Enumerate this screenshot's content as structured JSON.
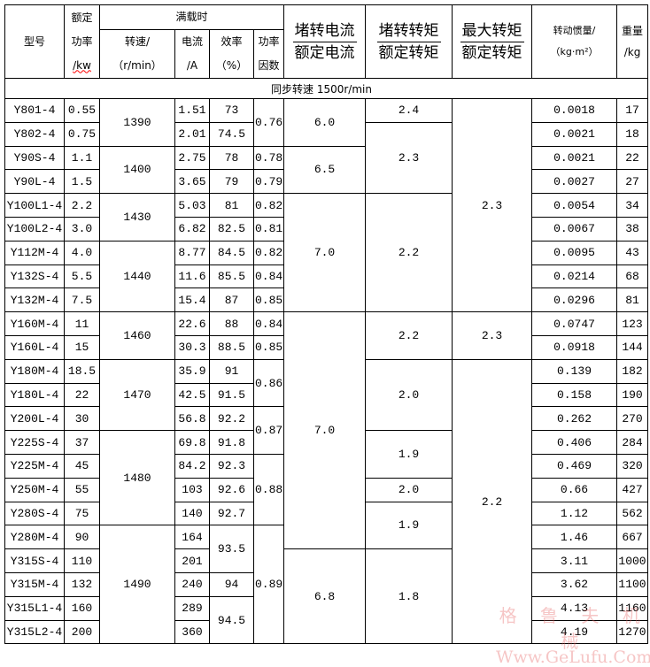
{
  "header": {
    "model": "型号",
    "rated_power": [
      "额定",
      "功率",
      "/kw"
    ],
    "full_load": "满载时",
    "speed": [
      "转速/",
      "（r/min）"
    ],
    "current": [
      "电流",
      "/A"
    ],
    "efficiency": [
      "效率",
      "（%）"
    ],
    "power_factor": [
      "功率",
      "因数"
    ],
    "locked_current": [
      "堵转电流",
      "额定电流"
    ],
    "locked_torque": [
      "堵转转矩",
      "额定转矩"
    ],
    "max_torque": [
      "最大转矩",
      "额定转矩"
    ],
    "inertia": [
      "转动惯量/",
      "（kg·m²）"
    ],
    "weight": [
      "重量",
      "/kg"
    ]
  },
  "section_title": "同步转速 1500r/min",
  "columns": [
    {
      "name": "model",
      "groups": [
        {
          "v": "Y801-4",
          "n": 1
        },
        {
          "v": "Y802-4",
          "n": 1
        },
        {
          "v": "Y90S-4",
          "n": 1
        },
        {
          "v": "Y90L-4",
          "n": 1
        },
        {
          "v": "Y100L1-4",
          "n": 1
        },
        {
          "v": "Y100L2-4",
          "n": 1
        },
        {
          "v": "Y112M-4",
          "n": 1
        },
        {
          "v": "Y132S-4",
          "n": 1
        },
        {
          "v": "Y132M-4",
          "n": 1
        },
        {
          "v": "Y160M-4",
          "n": 1
        },
        {
          "v": "Y160L-4",
          "n": 1
        },
        {
          "v": "Y180M-4",
          "n": 1
        },
        {
          "v": "Y180L-4",
          "n": 1
        },
        {
          "v": "Y200L-4",
          "n": 1
        },
        {
          "v": "Y225S-4",
          "n": 1
        },
        {
          "v": "Y225M-4",
          "n": 1
        },
        {
          "v": "Y250M-4",
          "n": 1
        },
        {
          "v": "Y280S-4",
          "n": 1
        },
        {
          "v": "Y280M-4",
          "n": 1
        },
        {
          "v": "Y315S-4",
          "n": 1
        },
        {
          "v": "Y315M-4",
          "n": 1
        },
        {
          "v": "Y315L1-4",
          "n": 1
        },
        {
          "v": "Y315L2-4",
          "n": 1
        }
      ]
    },
    {
      "name": "rated-power",
      "groups": [
        {
          "v": "0.55",
          "n": 1
        },
        {
          "v": "0.75",
          "n": 1
        },
        {
          "v": "1.1",
          "n": 1
        },
        {
          "v": "1.5",
          "n": 1
        },
        {
          "v": "2.2",
          "n": 1
        },
        {
          "v": "3.0",
          "n": 1
        },
        {
          "v": "4.0",
          "n": 1
        },
        {
          "v": "5.5",
          "n": 1
        },
        {
          "v": "7.5",
          "n": 1
        },
        {
          "v": "11",
          "n": 1
        },
        {
          "v": "15",
          "n": 1
        },
        {
          "v": "18.5",
          "n": 1
        },
        {
          "v": "22",
          "n": 1
        },
        {
          "v": "30",
          "n": 1
        },
        {
          "v": "37",
          "n": 1
        },
        {
          "v": "45",
          "n": 1
        },
        {
          "v": "55",
          "n": 1
        },
        {
          "v": "75",
          "n": 1
        },
        {
          "v": "90",
          "n": 1
        },
        {
          "v": "110",
          "n": 1
        },
        {
          "v": "132",
          "n": 1
        },
        {
          "v": "160",
          "n": 1
        },
        {
          "v": "200",
          "n": 1
        }
      ]
    },
    {
      "name": "speed",
      "groups": [
        {
          "v": "1390",
          "n": 2
        },
        {
          "v": "1400",
          "n": 2
        },
        {
          "v": "1430",
          "n": 2
        },
        {
          "v": "1440",
          "n": 3
        },
        {
          "v": "1460",
          "n": 2
        },
        {
          "v": "1470",
          "n": 3
        },
        {
          "v": "1480",
          "n": 4
        },
        {
          "v": "1490",
          "n": 5
        }
      ]
    },
    {
      "name": "current",
      "groups": [
        {
          "v": "1.51",
          "n": 1
        },
        {
          "v": "2.01",
          "n": 1
        },
        {
          "v": "2.75",
          "n": 1
        },
        {
          "v": "3.65",
          "n": 1
        },
        {
          "v": "5.03",
          "n": 1
        },
        {
          "v": "6.82",
          "n": 1
        },
        {
          "v": "8.77",
          "n": 1
        },
        {
          "v": "11.6",
          "n": 1
        },
        {
          "v": "15.4",
          "n": 1
        },
        {
          "v": "22.6",
          "n": 1
        },
        {
          "v": "30.3",
          "n": 1
        },
        {
          "v": "35.9",
          "n": 1
        },
        {
          "v": "42.5",
          "n": 1
        },
        {
          "v": "56.8",
          "n": 1
        },
        {
          "v": "69.8",
          "n": 1
        },
        {
          "v": "84.2",
          "n": 1
        },
        {
          "v": "103",
          "n": 1
        },
        {
          "v": "140",
          "n": 1
        },
        {
          "v": "164",
          "n": 1
        },
        {
          "v": "201",
          "n": 1
        },
        {
          "v": "240",
          "n": 1
        },
        {
          "v": "289",
          "n": 1
        },
        {
          "v": "360",
          "n": 1
        }
      ]
    },
    {
      "name": "efficiency",
      "groups": [
        {
          "v": "73",
          "n": 1
        },
        {
          "v": "74.5",
          "n": 1
        },
        {
          "v": "78",
          "n": 1
        },
        {
          "v": "79",
          "n": 1
        },
        {
          "v": "81",
          "n": 1
        },
        {
          "v": "82.5",
          "n": 1
        },
        {
          "v": "84.5",
          "n": 1
        },
        {
          "v": "85.5",
          "n": 1
        },
        {
          "v": "87",
          "n": 1
        },
        {
          "v": "88",
          "n": 1
        },
        {
          "v": "88.5",
          "n": 1
        },
        {
          "v": "91",
          "n": 1
        },
        {
          "v": "91.5",
          "n": 1
        },
        {
          "v": "92.2",
          "n": 1
        },
        {
          "v": "91.8",
          "n": 1
        },
        {
          "v": "92.3",
          "n": 1
        },
        {
          "v": "92.6",
          "n": 1
        },
        {
          "v": "92.7",
          "n": 1
        },
        {
          "v": "93.5",
          "n": 2
        },
        {
          "v": "94",
          "n": 1
        },
        {
          "v": "94.5",
          "n": 2
        }
      ]
    },
    {
      "name": "power-factor",
      "groups": [
        {
          "v": "0.76",
          "n": 2
        },
        {
          "v": "0.78",
          "n": 1
        },
        {
          "v": "0.79",
          "n": 1
        },
        {
          "v": "0.82",
          "n": 1
        },
        {
          "v": "0.81",
          "n": 1
        },
        {
          "v": "0.82",
          "n": 1
        },
        {
          "v": "0.84",
          "n": 1
        },
        {
          "v": "0.85",
          "n": 1
        },
        {
          "v": "0.84",
          "n": 1
        },
        {
          "v": "0.85",
          "n": 1
        },
        {
          "v": "0.86",
          "n": 2
        },
        {
          "v": "0.87",
          "n": 2
        },
        {
          "v": "0.88",
          "n": 3
        },
        {
          "v": "0.89",
          "n": 5
        }
      ]
    },
    {
      "name": "locked-current-ratio",
      "groups": [
        {
          "v": "6.0",
          "n": 2
        },
        {
          "v": "6.5",
          "n": 2
        },
        {
          "v": "7.0",
          "n": 5
        },
        {
          "v": "7.0",
          "n": 10
        },
        {
          "v": "6.8",
          "n": 4
        }
      ]
    },
    {
      "name": "locked-torque-ratio",
      "groups": [
        {
          "v": "2.4",
          "n": 1
        },
        {
          "v": "2.3",
          "n": 3
        },
        {
          "v": "2.2",
          "n": 5
        },
        {
          "v": "2.2",
          "n": 2
        },
        {
          "v": "2.0",
          "n": 3
        },
        {
          "v": "1.9",
          "n": 2
        },
        {
          "v": "2.0",
          "n": 1
        },
        {
          "v": "1.9",
          "n": 2
        },
        {
          "v": "1.8",
          "n": 4
        }
      ]
    },
    {
      "name": "max-torque-ratio",
      "groups": [
        {
          "v": "2.3",
          "n": 9
        },
        {
          "v": "2.3",
          "n": 2
        },
        {
          "v": "2.2",
          "n": 12
        }
      ]
    },
    {
      "name": "inertia",
      "groups": [
        {
          "v": "0.0018",
          "n": 1
        },
        {
          "v": "0.0021",
          "n": 1
        },
        {
          "v": "0.0021",
          "n": 1
        },
        {
          "v": "0.0027",
          "n": 1
        },
        {
          "v": "0.0054",
          "n": 1
        },
        {
          "v": "0.0067",
          "n": 1
        },
        {
          "v": "0.0095",
          "n": 1
        },
        {
          "v": "0.0214",
          "n": 1
        },
        {
          "v": "0.0296",
          "n": 1
        },
        {
          "v": "0.0747",
          "n": 1
        },
        {
          "v": "0.0918",
          "n": 1
        },
        {
          "v": "0.139",
          "n": 1
        },
        {
          "v": "0.158",
          "n": 1
        },
        {
          "v": "0.262",
          "n": 1
        },
        {
          "v": "0.406",
          "n": 1
        },
        {
          "v": "0.469",
          "n": 1
        },
        {
          "v": "0.66",
          "n": 1
        },
        {
          "v": "1.12",
          "n": 1
        },
        {
          "v": "1.46",
          "n": 1
        },
        {
          "v": "3.11",
          "n": 1
        },
        {
          "v": "3.62",
          "n": 1
        },
        {
          "v": "4.13",
          "n": 1
        },
        {
          "v": "4.19",
          "n": 1
        }
      ]
    },
    {
      "name": "weight",
      "groups": [
        {
          "v": "17",
          "n": 1
        },
        {
          "v": "18",
          "n": 1
        },
        {
          "v": "22",
          "n": 1
        },
        {
          "v": "27",
          "n": 1
        },
        {
          "v": "34",
          "n": 1
        },
        {
          "v": "38",
          "n": 1
        },
        {
          "v": "43",
          "n": 1
        },
        {
          "v": "68",
          "n": 1
        },
        {
          "v": "81",
          "n": 1
        },
        {
          "v": "123",
          "n": 1
        },
        {
          "v": "144",
          "n": 1
        },
        {
          "v": "182",
          "n": 1
        },
        {
          "v": "190",
          "n": 1
        },
        {
          "v": "270",
          "n": 1
        },
        {
          "v": "284",
          "n": 1
        },
        {
          "v": "320",
          "n": 1
        },
        {
          "v": "427",
          "n": 1
        },
        {
          "v": "562",
          "n": 1
        },
        {
          "v": "667",
          "n": 1
        },
        {
          "v": "1000",
          "n": 1
        },
        {
          "v": "1100",
          "n": 1
        },
        {
          "v": "1160",
          "n": 1
        },
        {
          "v": "1270",
          "n": 1
        }
      ]
    }
  ],
  "watermark": [
    "格 鲁 夫 机 械",
    "Www.GeLufu.Com"
  ],
  "colors": {
    "border": "#000000",
    "watermark": "#e65a5a"
  }
}
